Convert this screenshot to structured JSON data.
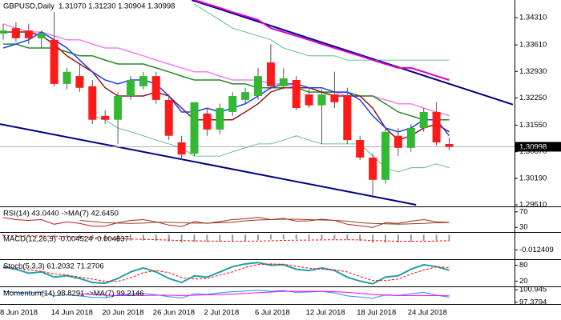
{
  "chart_data": [
    {
      "type": "candlestick",
      "title": "GBPUSD,Daily  1.31070 1.31230 1.30904 1.30998",
      "categories": [
        "8 Jun 2018",
        null,
        null,
        null,
        "14 Jun 2018",
        null,
        null,
        null,
        "20 Jun 2018",
        null,
        null,
        null,
        "26 Jun 2018",
        null,
        null,
        null,
        "2 Jul 2018",
        null,
        null,
        null,
        "6 Jul 2018",
        null,
        null,
        null,
        "12 Jul 2018",
        null,
        null,
        null,
        "18 Jul 2018",
        null,
        null,
        null,
        "24 Jul 2018",
        null,
        null,
        null
      ],
      "open": [
        1.339,
        1.3404,
        1.3398,
        1.3378,
        1.3374,
        1.3261,
        1.3281,
        1.3255,
        1.3179,
        1.3169,
        1.323,
        1.3255,
        1.3281,
        1.322,
        1.3111,
        1.3082,
        1.3185,
        1.3144,
        1.3189,
        1.322,
        1.323,
        1.3316,
        1.3255,
        1.3271,
        1.3234,
        1.3206,
        1.3234,
        1.323,
        1.3117,
        1.3072,
        1.3015,
        1.3128,
        1.3097,
        1.3148,
        1.3189,
        1.3107
      ],
      "high": [
        1.3415,
        1.3419,
        1.3415,
        1.3398,
        1.3445,
        1.3302,
        1.3312,
        1.3271,
        1.3193,
        1.324,
        1.3281,
        1.3292,
        1.3292,
        1.3234,
        1.3128,
        1.3214,
        1.3199,
        1.321,
        1.324,
        1.3251,
        1.3302,
        1.3363,
        1.3302,
        1.3281,
        1.3251,
        1.3247,
        1.3292,
        1.3251,
        1.3128,
        1.3082,
        1.3148,
        1.3148,
        1.3158,
        1.3199,
        1.3214,
        1.3123
      ],
      "low": [
        1.3374,
        1.3369,
        1.3363,
        1.3353,
        1.3255,
        1.3247,
        1.324,
        1.3158,
        1.3158,
        1.3107,
        1.322,
        1.3247,
        1.321,
        1.3117,
        1.3066,
        1.3076,
        1.3128,
        1.3132,
        1.3179,
        1.321,
        1.322,
        1.3247,
        1.3247,
        1.3193,
        1.3199,
        1.3107,
        1.3199,
        1.3107,
        1.3066,
        1.2968,
        1.3005,
        1.3076,
        1.3087,
        1.3138,
        1.3103,
        1.30904
      ],
      "close": [
        1.3398,
        1.3378,
        1.3378,
        1.339,
        1.3261,
        1.3292,
        1.3251,
        1.3169,
        1.3169,
        1.323,
        1.3271,
        1.3281,
        1.322,
        1.3128,
        1.308,
        1.3214,
        1.3144,
        1.3199,
        1.323,
        1.324,
        1.3281,
        1.3255,
        1.3275,
        1.3199,
        1.3206,
        1.3234,
        1.3214,
        1.3117,
        1.3072,
        1.3015,
        1.3138,
        1.3097,
        1.3148,
        1.3189,
        1.3111,
        1.30998
      ],
      "up_color": "#32b832",
      "down_color": "#ff1a1a",
      "wick_color": "#555555",
      "series": [
        {
          "color": "#3cb371",
          "width": 0.8,
          "values": [
            null,
            null,
            null,
            null,
            null,
            null,
            null,
            1.3179,
            1.3169,
            1.3148,
            1.3138,
            1.3128,
            1.3117,
            1.3107,
            1.3097,
            1.3076,
            1.3076,
            1.3076,
            1.3087,
            1.3097,
            1.3107,
            1.3107,
            1.3117,
            1.3128,
            1.3117,
            1.3107,
            1.3107,
            1.3107,
            1.3107,
            1.3076,
            1.3046,
            1.3035,
            1.3046,
            1.3046,
            1.3056,
            1.3046
          ]
        },
        {
          "color": "#3cb371",
          "width": 0.8,
          "values": [
            null,
            null,
            null,
            null,
            null,
            null,
            null,
            null,
            null,
            null,
            null,
            null,
            null,
            null,
            null,
            1.3466,
            1.3445,
            1.3425,
            1.3404,
            1.3394,
            1.3384,
            1.3374,
            1.3353,
            1.3343,
            1.3333,
            1.3333,
            1.3333,
            1.3322,
            1.3322,
            1.3322,
            1.3322,
            1.3322,
            1.3322,
            1.3322,
            1.3322,
            1.3322
          ]
        },
        {
          "color": "#d600d6",
          "width": 2,
          "values": [
            null,
            null,
            null,
            null,
            null,
            null,
            null,
            null,
            null,
            null,
            null,
            null,
            null,
            null,
            null,
            1.3476,
            1.3466,
            1.3456,
            1.3445,
            1.3435,
            1.3425,
            1.3404,
            1.3394,
            1.3384,
            1.3374,
            1.3363,
            1.3353,
            1.3343,
            1.3333,
            1.3322,
            1.3312,
            1.3302,
            1.3302,
            1.3292,
            1.3281,
            1.3271
          ]
        },
        {
          "color": "#ee82ee",
          "width": 1.5,
          "values": [
            1.3415,
            1.3404,
            1.3394,
            1.3394,
            1.3384,
            1.3374,
            1.3374,
            1.3363,
            1.3353,
            1.3353,
            1.3343,
            1.3333,
            1.3322,
            1.3312,
            1.3302,
            1.3292,
            1.3292,
            1.3281,
            1.3271,
            1.3271,
            1.3271,
            1.3261,
            1.3261,
            1.3251,
            1.3251,
            1.324,
            1.324,
            1.323,
            1.323,
            1.323,
            1.322,
            1.321,
            1.321,
            1.3199,
            1.3189,
            1.3179
          ]
        },
        {
          "color": "#228b22",
          "width": 1.5,
          "values": [
            1.3363,
            1.3363,
            1.3353,
            1.3353,
            1.3353,
            1.3343,
            1.3333,
            1.3333,
            1.3322,
            1.3312,
            1.3312,
            1.3312,
            1.3302,
            1.3292,
            1.3281,
            1.3271,
            1.3271,
            1.3271,
            1.3261,
            1.3261,
            1.3251,
            1.3251,
            1.3251,
            1.3251,
            1.324,
            1.324,
            1.324,
            1.324,
            1.323,
            1.323,
            1.321,
            1.3189,
            1.3179,
            1.3169,
            1.3169,
            1.3169
          ]
        },
        {
          "color": "#8b1a1a",
          "width": 1.5,
          "values": [
            1.3394,
            1.3394,
            1.3394,
            1.3384,
            1.3363,
            1.3333,
            1.3312,
            1.3292,
            1.3251,
            1.323,
            1.323,
            1.323,
            1.324,
            1.323,
            1.3199,
            1.3169,
            1.3169,
            1.3169,
            1.3169,
            1.3189,
            1.321,
            1.324,
            1.3251,
            1.3251,
            1.3251,
            1.324,
            1.323,
            1.323,
            1.323,
            1.3199,
            1.3148,
            1.3117,
            1.3128,
            1.3148,
            1.3158,
            1.3138
          ]
        },
        {
          "color": "#1a3cff",
          "width": 1.5,
          "values": [
            1.3353,
            1.3363,
            1.3374,
            1.3394,
            1.3374,
            1.3353,
            1.3322,
            1.3292,
            1.3271,
            1.3261,
            1.3271,
            1.3271,
            1.3261,
            1.323,
            1.3189,
            1.3189,
            1.3199,
            1.3189,
            1.3199,
            1.321,
            1.323,
            1.3251,
            1.3261,
            1.3261,
            1.3251,
            1.3251,
            1.324,
            1.324,
            1.322,
            1.3179,
            1.3148,
            1.3138,
            1.3148,
            1.3169,
            1.3169,
            1.3128
          ]
        }
      ],
      "trendlines": [
        {
          "color": "#00007f",
          "x": [
            14.8,
            40
          ],
          "y": [
            1.3476,
            1.3208
          ]
        },
        {
          "color": "#00007f",
          "x": [
            -0.25,
            32.4
          ],
          "y": [
            1.3158,
            1.2951
          ]
        }
      ],
      "last_price": 1.30998,
      "ylim": [
        1.29469,
        1.34761
      ],
      "yticks": [
        {
          "value": 1.3431,
          "label": "1.34310"
        },
        {
          "value": 1.3361,
          "label": "1.33610"
        },
        {
          "value": 1.3293,
          "label": "1.32930"
        },
        {
          "value": 1.3225,
          "label": "1.32250"
        },
        {
          "value": 1.3155,
          "label": "1.31550"
        },
        {
          "value": 1.3087,
          "label": "1.30870"
        },
        {
          "value": 1.3019,
          "label": "1.30190"
        },
        {
          "value": 1.2951,
          "label": "1.29510"
        }
      ]
    },
    {
      "type": "line",
      "title": "RSI(14) 43.0440 ->MA(7) 42.6450",
      "ylim": [
        18,
        82
      ],
      "yticks": [
        70,
        30
      ],
      "series": [
        {
          "color": "#b22222",
          "width": 1,
          "values": [
            55,
            50,
            48,
            50,
            38,
            44,
            40,
            33,
            33,
            42,
            48,
            50,
            44,
            36,
            32,
            45,
            40,
            45,
            50,
            52,
            56,
            50,
            53,
            46,
            47,
            51,
            48,
            38,
            34,
            30,
            42,
            40,
            46,
            50,
            44,
            43.044
          ]
        },
        {
          "color": "#8b4513",
          "width": 1,
          "values": [
            null,
            null,
            null,
            null,
            null,
            null,
            48,
            45,
            42,
            41,
            40,
            41,
            43,
            43,
            42,
            41,
            41,
            42,
            43,
            47,
            49,
            50,
            51,
            51,
            50,
            49,
            48,
            46,
            42,
            40,
            39,
            38,
            39,
            40,
            42,
            42.645
          ]
        }
      ]
    },
    {
      "type": "bar",
      "title": "MACD(12,26,9) -0.004524 -0.004837",
      "ylim": [
        -0.02,
        0.0015
      ],
      "yticks": [
        -0.012409
      ],
      "color": "#999999",
      "values": [
        -0.001,
        -0.0012,
        -0.0015,
        -0.0015,
        -0.002,
        -0.0025,
        -0.003,
        -0.004,
        -0.005,
        -0.0055,
        -0.005,
        -0.0048,
        -0.005,
        -0.0055,
        -0.0065,
        -0.006,
        -0.006,
        -0.0058,
        -0.0055,
        -0.005,
        -0.0045,
        -0.004,
        -0.0038,
        -0.0038,
        -0.0038,
        -0.0038,
        -0.0038,
        -0.0042,
        -0.005,
        -0.0065,
        -0.0065,
        -0.0065,
        -0.006,
        -0.005,
        -0.0048,
        -0.004524
      ],
      "series": [
        {
          "color": "#ff0000",
          "width": 1,
          "dashed": true,
          "values": [
            -0.0008,
            -0.0009,
            -0.001,
            -0.0011,
            -0.0013,
            -0.0015,
            -0.0018,
            -0.0022,
            -0.0027,
            -0.0032,
            -0.0036,
            -0.0038,
            -0.0041,
            -0.0044,
            -0.0048,
            -0.005,
            -0.0052,
            -0.0053,
            -0.0054,
            -0.0053,
            -0.0052,
            -0.005,
            -0.0047,
            -0.0045,
            -0.0044,
            -0.0043,
            -0.0042,
            -0.0042,
            -0.0043,
            -0.0048,
            -0.0051,
            -0.0054,
            -0.0055,
            -0.0054,
            -0.0052,
            -0.004837
          ]
        }
      ]
    },
    {
      "type": "line",
      "title": "Stoch(5,3,3) 61.2032 71.2706",
      "ylim": [
        0,
        100
      ],
      "yticks": [
        80,
        20
      ],
      "series": [
        {
          "color": "#20a0a8",
          "width": 2,
          "values": [
            75,
            65,
            50,
            55,
            35,
            40,
            30,
            15,
            12,
            30,
            55,
            70,
            55,
            30,
            15,
            40,
            35,
            55,
            75,
            85,
            90,
            80,
            82,
            65,
            60,
            70,
            60,
            35,
            20,
            10,
            35,
            40,
            65,
            82,
            75,
            61.2032
          ]
        },
        {
          "color": "#ff0000",
          "width": 1,
          "dashed": true,
          "values": [
            70,
            70,
            63,
            57,
            47,
            43,
            35,
            28,
            19,
            19,
            32,
            52,
            60,
            52,
            33,
            28,
            30,
            43,
            55,
            72,
            83,
            85,
            84,
            76,
            69,
            65,
            63,
            55,
            38,
            22,
            22,
            28,
            47,
            62,
            74,
            71.2706
          ]
        }
      ]
    },
    {
      "type": "line",
      "title": "Momentum(14) 98.8291 ->MA(7) 99.2146",
      "ylim": [
        96.9,
        101.66
      ],
      "yticks": [
        100.945,
        97.3794
      ],
      "series": [
        {
          "color": "#1e90ff",
          "width": 1,
          "values": [
            100.5,
            100.2,
            100.0,
            100.3,
            99.2,
            99.5,
            99.2,
            98.8,
            98.7,
            99.4,
            99.8,
            99.9,
            99.5,
            99.0,
            98.6,
            99.8,
            99.6,
            100.1,
            100.4,
            100.6,
            100.8,
            100.5,
            100.7,
            100.2,
            100.3,
            100.5,
            100.0,
            99.2,
            98.9,
            98.5,
            99.5,
            99.3,
            99.8,
            100.2,
            99.4,
            98.8291
          ]
        },
        {
          "color": "#ff00ff",
          "width": 1,
          "values": [
            null,
            null,
            null,
            null,
            null,
            null,
            99.8,
            99.6,
            99.4,
            99.3,
            99.3,
            99.3,
            99.4,
            99.4,
            99.3,
            99.4,
            99.5,
            99.6,
            99.7,
            99.9,
            100.1,
            100.3,
            100.5,
            100.5,
            100.5,
            100.5,
            100.4,
            100.2,
            99.9,
            99.6,
            99.4,
            99.3,
            99.3,
            99.3,
            99.3,
            99.2146
          ]
        }
      ]
    }
  ]
}
